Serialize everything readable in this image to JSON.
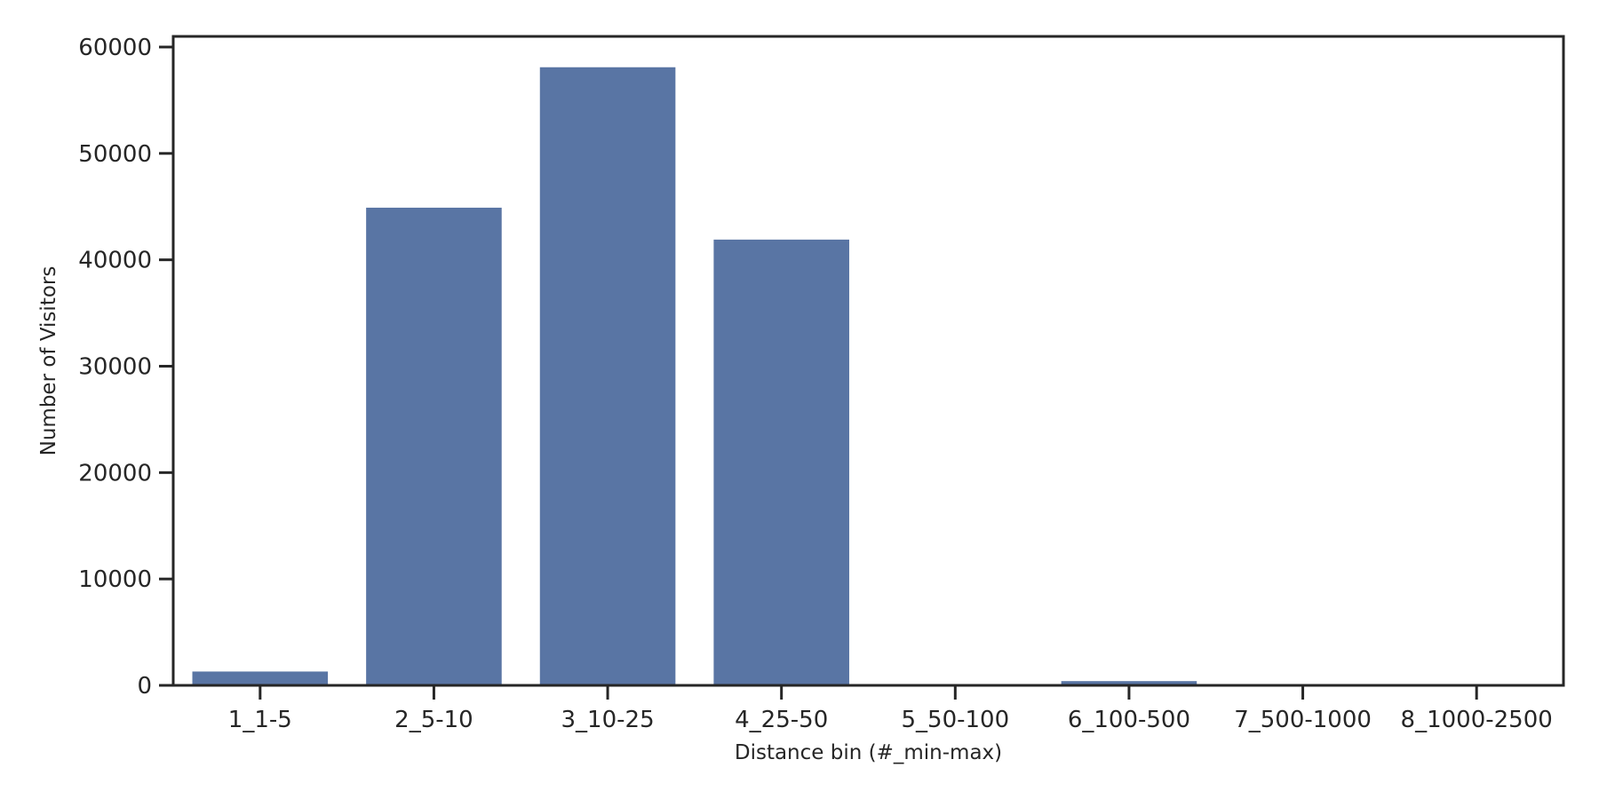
{
  "chart_data": {
    "type": "bar",
    "categories": [
      "1_1-5",
      "2_5-10",
      "3_10-25",
      "4_25-50",
      "5_50-100",
      "6_100-500",
      "7_500-1000",
      "8_1000-2500"
    ],
    "values": [
      1300,
      44900,
      58100,
      41900,
      0,
      400,
      0,
      0
    ],
    "xlabel": "Distance bin (#_min-max)",
    "ylabel": "Number of Visitors",
    "ylim": [
      0,
      61000
    ],
    "yticks": [
      0,
      10000,
      20000,
      30000,
      40000,
      50000,
      60000
    ],
    "grid": false,
    "bar_color": "#5975a4",
    "axis_color": "#262626"
  }
}
